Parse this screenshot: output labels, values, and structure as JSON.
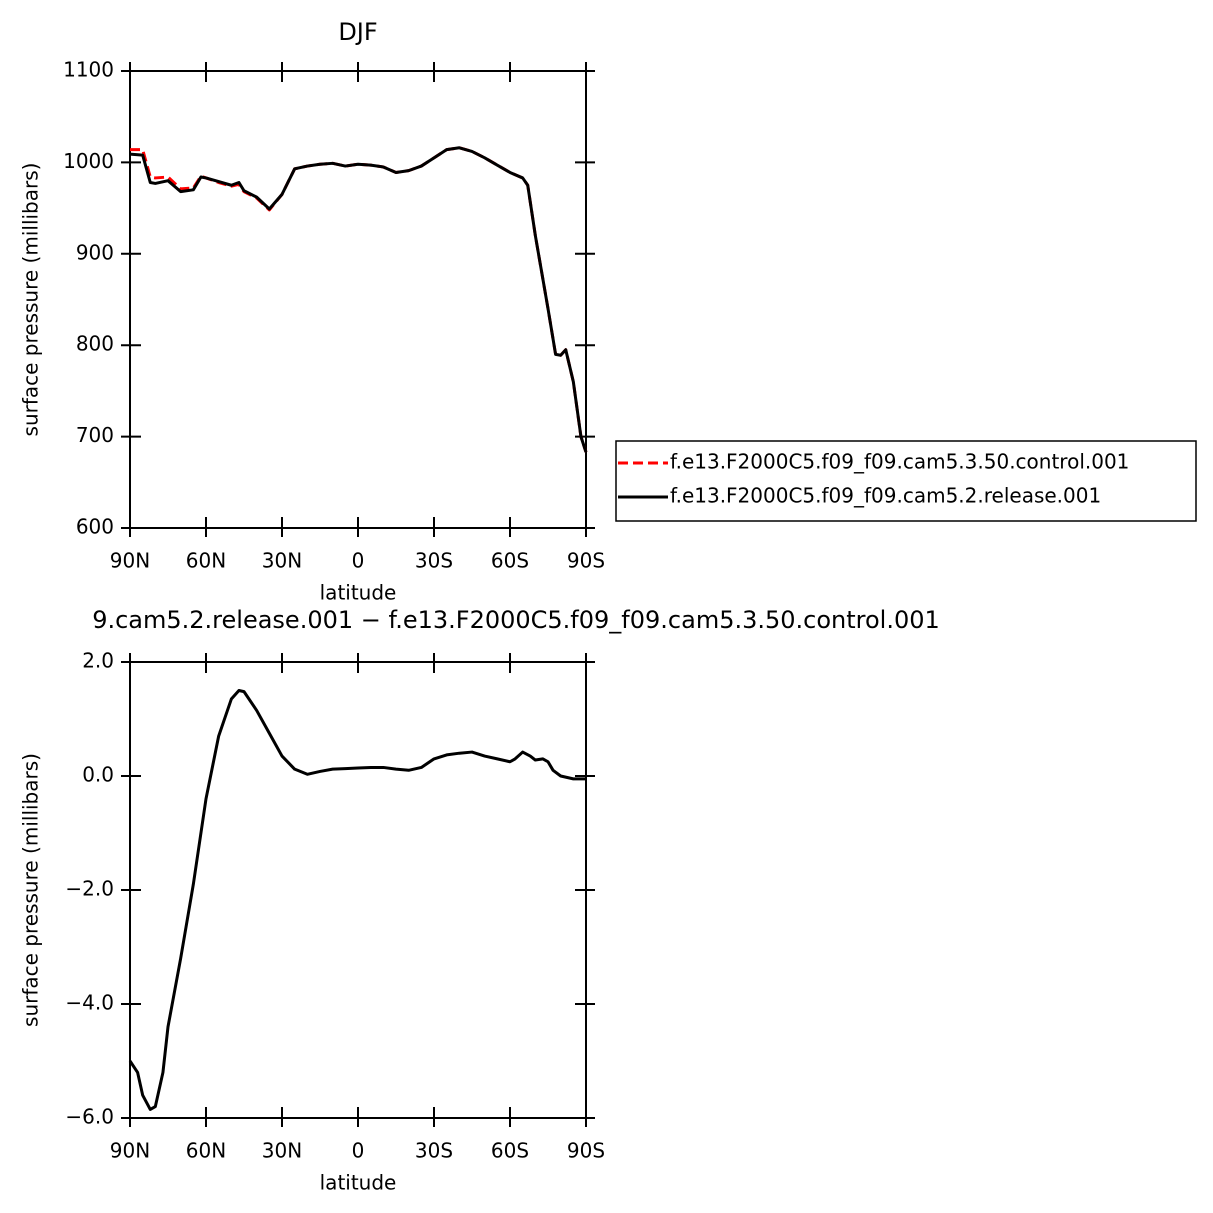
{
  "chart_data": [
    {
      "type": "line",
      "title": "DJF",
      "x_label": "latitude",
      "y_label": "surface pressure (millibars)",
      "x": [
        90,
        85,
        82,
        80,
        75,
        70,
        65,
        62,
        60,
        55,
        50,
        47,
        45,
        40,
        35,
        30,
        25,
        20,
        15,
        10,
        5,
        0,
        -5,
        -10,
        -15,
        -20,
        -25,
        -30,
        -35,
        -40,
        -45,
        -50,
        -55,
        -60,
        -65,
        -67,
        -70,
        -75,
        -78,
        -80,
        -82,
        -85,
        -88,
        -90
      ],
      "series": [
        {
          "name": "f.e13.F2000C5.f09_f09.cam5.3.50.control.001",
          "color": "#ff0000",
          "dashed": true,
          "values": [
            1014,
            1014,
            984,
            983,
            984,
            971,
            972,
            985,
            983,
            978,
            974,
            976,
            968,
            961,
            948,
            965,
            993,
            996,
            998,
            999,
            996,
            998,
            997,
            995,
            989,
            991,
            996,
            1005,
            1014,
            1016,
            1012,
            1005,
            997,
            989,
            983,
            975,
            920,
            840,
            790,
            789,
            795,
            760,
            700,
            683
          ]
        },
        {
          "name": "f.e13.F2000C5.f09_f09.cam5.2.release.001",
          "color": "#000000",
          "dashed": false,
          "values": [
            1009,
            1008,
            978,
            977,
            980,
            968,
            970,
            984,
            983,
            979,
            975,
            978,
            969,
            962,
            949,
            965,
            993,
            996,
            998,
            999,
            996,
            998,
            997,
            995,
            989,
            991,
            996,
            1005,
            1014,
            1016,
            1012,
            1005,
            997,
            989,
            983,
            975,
            920,
            840,
            790,
            789,
            795,
            760,
            700,
            683
          ]
        }
      ],
      "xlim": [
        90,
        -90
      ],
      "xticks": [
        {
          "value": 90,
          "label": "90N"
        },
        {
          "value": 60,
          "label": "60N"
        },
        {
          "value": 30,
          "label": "30N"
        },
        0,
        {
          "value": -30,
          "label": "30S"
        },
        {
          "value": -60,
          "label": "60S"
        },
        {
          "value": -90,
          "label": "90S"
        }
      ],
      "ylim": [
        600,
        1100
      ],
      "yticks": [
        600,
        700,
        800,
        900,
        1000,
        1100
      ],
      "legend": "right"
    },
    {
      "type": "line",
      "title": "9.cam5.2.release.001 − f.e13.F2000C5.f09_f09.cam5.3.50.control.001",
      "x_label": "latitude",
      "y_label": "surface pressure (millibars)",
      "x": [
        90,
        87,
        85,
        82,
        80,
        77,
        75,
        70,
        65,
        60,
        55,
        50,
        47,
        45,
        40,
        35,
        30,
        25,
        20,
        15,
        10,
        5,
        0,
        -5,
        -10,
        -15,
        -20,
        -25,
        -30,
        -35,
        -40,
        -45,
        -50,
        -55,
        -60,
        -62,
        -65,
        -68,
        -70,
        -73,
        -75,
        -77,
        -80,
        -85,
        -90
      ],
      "series": [
        {
          "color": "#000000",
          "dashed": false,
          "values": [
            -5.0,
            -5.2,
            -5.6,
            -5.85,
            -5.8,
            -5.2,
            -4.4,
            -3.2,
            -1.9,
            -0.4,
            0.7,
            1.35,
            1.5,
            1.48,
            1.15,
            0.75,
            0.35,
            0.12,
            0.03,
            0.08,
            0.12,
            0.13,
            0.14,
            0.15,
            0.15,
            0.12,
            0.1,
            0.15,
            0.3,
            0.37,
            0.4,
            0.42,
            0.35,
            0.3,
            0.25,
            0.3,
            0.42,
            0.35,
            0.28,
            0.3,
            0.25,
            0.1,
            0.0,
            -0.05,
            -0.05
          ]
        }
      ],
      "xlim": [
        90,
        -90
      ],
      "xticks": [
        {
          "value": 90,
          "label": "90N"
        },
        {
          "value": 60,
          "label": "60N"
        },
        {
          "value": 30,
          "label": "30N"
        },
        0,
        {
          "value": -30,
          "label": "30S"
        },
        {
          "value": -60,
          "label": "60S"
        },
        {
          "value": -90,
          "label": "90S"
        }
      ],
      "ylim": [
        -6,
        2
      ],
      "yticks": [
        {
          "value": -6,
          "label": "−6.0"
        },
        {
          "value": -4,
          "label": "−4.0"
        },
        {
          "value": -2,
          "label": "−2.0"
        },
        {
          "value": 0,
          "label": "0.0"
        },
        {
          "value": 2,
          "label": "2.0"
        }
      ]
    }
  ]
}
